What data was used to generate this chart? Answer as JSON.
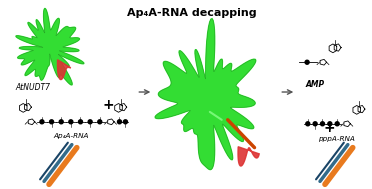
{
  "title": "Ap₄A-RNA decapping",
  "bg_color": "#ffffff",
  "green_light": "#33dd33",
  "green_dark": "#22bb22",
  "red_patch": "#dd3333",
  "orange_strand": "#e87a1e",
  "teal_strand1": "#336b8a",
  "teal_strand2": "#1a4466",
  "arrow_color": "#555555",
  "text_color": "#000000",
  "label_atnudt7": "AtNUDT7",
  "label_amp": "AMP",
  "label_ap4arna": "Ap₄A-RNA",
  "label_ppparna": "pppA-RNA"
}
